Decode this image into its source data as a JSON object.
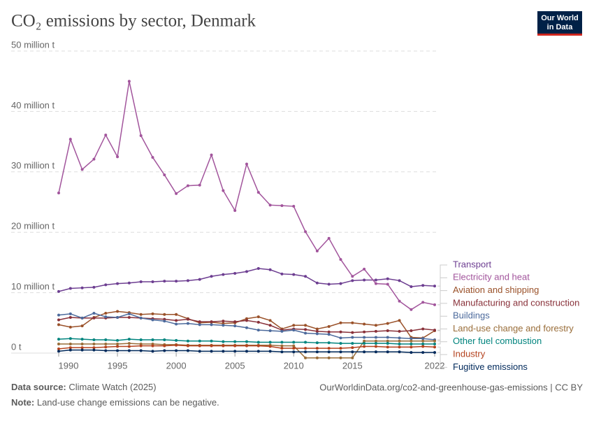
{
  "logo": {
    "line1": "Our World",
    "line2": "in Data"
  },
  "chart_data": {
    "type": "line",
    "title": "CO₂ emissions by sector, Denmark",
    "x": [
      1990,
      1991,
      1992,
      1993,
      1994,
      1995,
      1996,
      1997,
      1998,
      1999,
      2000,
      2001,
      2002,
      2003,
      2004,
      2005,
      2006,
      2007,
      2008,
      2009,
      2010,
      2011,
      2012,
      2013,
      2014,
      2015,
      2016,
      2017,
      2018,
      2019,
      2020,
      2021,
      2022
    ],
    "xlim": [
      1990,
      2022
    ],
    "xticks": [
      1990,
      1995,
      2000,
      2005,
      2010,
      2015,
      2022
    ],
    "ylim": [
      -1,
      50
    ],
    "yticks": [
      {
        "value": 0,
        "label": "0 t"
      },
      {
        "value": 10,
        "label": "10 million t"
      },
      {
        "value": 20,
        "label": "20 million t"
      },
      {
        "value": 30,
        "label": "30 million t"
      },
      {
        "value": 40,
        "label": "40 million t"
      },
      {
        "value": 50,
        "label": "50 million t"
      }
    ],
    "grid": true,
    "series": [
      {
        "name": "Transport",
        "color": "#6d3e91",
        "values": [
          10.2,
          10.7,
          10.8,
          10.9,
          11.3,
          11.5,
          11.6,
          11.8,
          11.8,
          11.9,
          11.9,
          12.0,
          12.2,
          12.7,
          13.0,
          13.2,
          13.5,
          14.0,
          13.8,
          13.1,
          13.0,
          12.7,
          11.6,
          11.4,
          11.5,
          12.0,
          12.1,
          12.1,
          12.3,
          12.0,
          11.0,
          11.2,
          11.1
        ]
      },
      {
        "name": "Electricity and heat",
        "color": "#a2559c",
        "values": [
          26.5,
          35.4,
          30.4,
          32.1,
          36.1,
          32.5,
          45.0,
          36.0,
          32.4,
          29.5,
          26.4,
          27.7,
          27.8,
          32.8,
          26.9,
          23.6,
          31.3,
          26.6,
          24.5,
          24.4,
          24.3,
          20.1,
          16.9,
          19.0,
          15.5,
          12.7,
          13.9,
          11.5,
          11.4,
          8.6,
          7.2,
          8.4,
          8.0
        ]
      },
      {
        "name": "Aviation and shipping",
        "color": "#9a5129",
        "values": [
          4.7,
          4.3,
          4.5,
          5.9,
          6.6,
          6.9,
          6.7,
          6.4,
          6.5,
          6.4,
          6.4,
          5.7,
          5.0,
          5.1,
          4.9,
          5.0,
          5.7,
          6.0,
          5.4,
          4.0,
          4.6,
          4.6,
          4.0,
          4.4,
          5.0,
          5.0,
          4.8,
          4.6,
          4.9,
          5.4,
          2.6,
          2.5,
          3.7
        ]
      },
      {
        "name": "Manufacturing and construction",
        "color": "#883039",
        "values": [
          5.5,
          5.9,
          5.8,
          5.8,
          5.8,
          5.9,
          5.9,
          5.8,
          5.7,
          5.6,
          5.4,
          5.6,
          5.2,
          5.2,
          5.3,
          5.2,
          5.4,
          5.1,
          4.6,
          3.8,
          4.0,
          3.9,
          3.6,
          3.5,
          3.5,
          3.4,
          3.5,
          3.6,
          3.7,
          3.6,
          3.7,
          4.0,
          3.8
        ]
      },
      {
        "name": "Buildings",
        "color": "#4c6a9c",
        "values": [
          6.3,
          6.5,
          5.8,
          6.6,
          6.0,
          5.9,
          6.5,
          5.8,
          5.5,
          5.3,
          4.8,
          4.9,
          4.7,
          4.7,
          4.6,
          4.5,
          4.2,
          3.8,
          3.7,
          3.6,
          3.8,
          3.3,
          3.2,
          3.1,
          2.5,
          2.6,
          2.6,
          2.6,
          2.6,
          2.5,
          2.4,
          2.4,
          2.2
        ]
      },
      {
        "name": "Land-use change and forestry",
        "color": "#996d39",
        "values": [
          1.5,
          1.5,
          1.5,
          1.5,
          1.5,
          1.5,
          1.6,
          1.5,
          1.5,
          1.4,
          1.4,
          1.3,
          1.3,
          1.3,
          1.3,
          1.3,
          1.3,
          1.3,
          1.3,
          1.2,
          1.2,
          -0.8,
          -0.8,
          -0.8,
          -0.8,
          -0.8,
          2.0,
          2.0,
          2.0,
          2.0,
          2.0,
          2.0,
          2.0
        ]
      },
      {
        "name": "Other fuel combustion",
        "color": "#00847e",
        "values": [
          2.3,
          2.4,
          2.3,
          2.2,
          2.2,
          2.1,
          2.3,
          2.2,
          2.2,
          2.2,
          2.1,
          2.0,
          2.0,
          2.0,
          1.9,
          1.9,
          1.9,
          1.8,
          1.8,
          1.8,
          1.8,
          1.8,
          1.7,
          1.7,
          1.6,
          1.6,
          1.6,
          1.6,
          1.6,
          1.5,
          1.5,
          1.5,
          1.5
        ]
      },
      {
        "name": "Industry",
        "color": "#b4421e",
        "values": [
          0.7,
          0.9,
          0.9,
          0.9,
          1.0,
          1.1,
          1.1,
          1.2,
          1.2,
          1.2,
          1.3,
          1.2,
          1.2,
          1.2,
          1.2,
          1.2,
          1.2,
          1.2,
          1.1,
          0.8,
          0.8,
          0.8,
          0.8,
          0.8,
          0.8,
          0.9,
          1.1,
          1.1,
          1.0,
          1.0,
          1.0,
          1.1,
          1.0
        ]
      },
      {
        "name": "Fugitive emissions",
        "color": "#00295b",
        "values": [
          0.3,
          0.5,
          0.5,
          0.5,
          0.4,
          0.4,
          0.4,
          0.4,
          0.3,
          0.4,
          0.4,
          0.4,
          0.3,
          0.3,
          0.3,
          0.3,
          0.3,
          0.3,
          0.3,
          0.2,
          0.2,
          0.2,
          0.2,
          0.2,
          0.2,
          0.2,
          0.2,
          0.2,
          0.2,
          0.2,
          0.1,
          0.1,
          0.1
        ]
      }
    ],
    "source_label": "Data source:",
    "source": "Climate Watch (2025)",
    "url": "OurWorldinData.org/co2-and-greenhouse-gas-emissions | CC BY",
    "note_label": "Note:",
    "note": "Land-use change emissions can be negative."
  }
}
